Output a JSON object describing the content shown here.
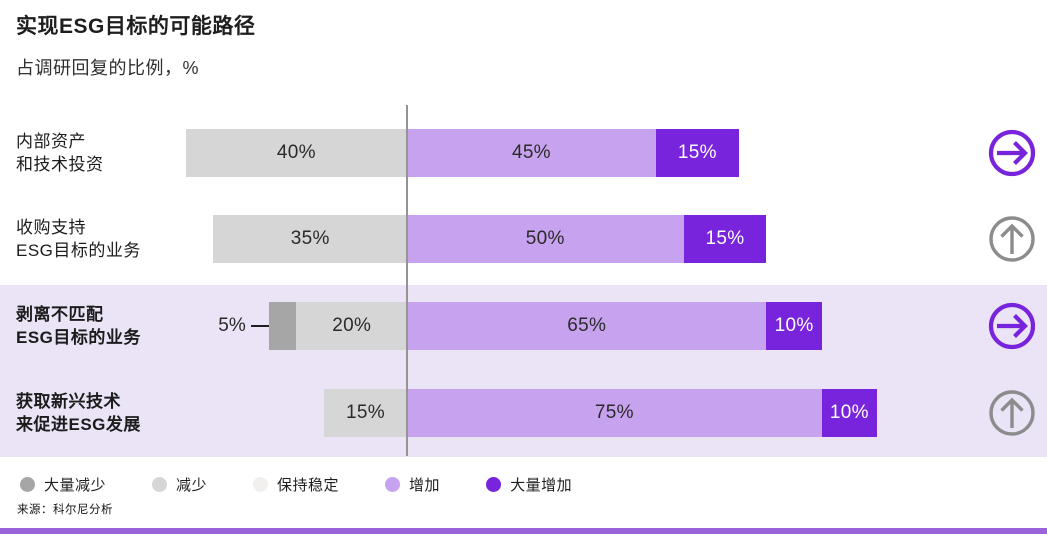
{
  "chart_data": {
    "type": "bar",
    "variant": "horizontal-diverging-stacked",
    "title": "实现ESG目标的可能路径",
    "subtitle": "占调研回复的比例，%",
    "unit": "%",
    "categories": [
      "大量减少",
      "减少",
      "保持稳定",
      "增加",
      "大量增加"
    ],
    "legend_position": "bottom",
    "legend": [
      {
        "label": "大量减少",
        "color": "#a6a6a6"
      },
      {
        "label": "减少",
        "color": "#d6d6d6"
      },
      {
        "label": "保持稳定",
        "color": "#f2f0ee"
      },
      {
        "label": "增加",
        "color": "#c7a2ee"
      },
      {
        "label": "大量增加",
        "color": "#7823dc"
      }
    ],
    "rows": [
      {
        "label_lines": [
          "内部资产",
          "和技术投资"
        ],
        "bold": false,
        "highlighted": false,
        "icon": "arrow-right-circle-icon",
        "icon_color": "#7823dc",
        "segments": [
          {
            "category": "减少",
            "value": 40
          },
          {
            "category": "增加",
            "value": 45
          },
          {
            "category": "大量增加",
            "value": 15
          }
        ]
      },
      {
        "label_lines": [
          "收购支持",
          "ESG目标的业务"
        ],
        "bold": false,
        "highlighted": false,
        "icon": "arrow-up-circle-icon",
        "icon_color": "#8c8c8c",
        "segments": [
          {
            "category": "减少",
            "value": 35
          },
          {
            "category": "增加",
            "value": 50
          },
          {
            "category": "大量增加",
            "value": 15
          }
        ]
      },
      {
        "label_lines": [
          "剥离不匹配",
          "ESG目标的业务"
        ],
        "bold": true,
        "highlighted": true,
        "icon": "arrow-right-circle-icon",
        "icon_color": "#7823dc",
        "segments": [
          {
            "category": "大量减少",
            "value": 5,
            "label_outside": true
          },
          {
            "category": "减少",
            "value": 20
          },
          {
            "category": "增加",
            "value": 65
          },
          {
            "category": "大量增加",
            "value": 10
          }
        ]
      },
      {
        "label_lines": [
          "获取新兴技术",
          "来促进ESG发展"
        ],
        "bold": true,
        "highlighted": true,
        "icon": "arrow-up-circle-icon",
        "icon_color": "#8c8c8c",
        "segments": [
          {
            "category": "减少",
            "value": 15
          },
          {
            "category": "增加",
            "value": 75
          },
          {
            "category": "大量增加",
            "value": 10
          }
        ]
      }
    ]
  },
  "source": "来源：科尔尼分析",
  "colors": {
    "background": "#ffffff",
    "highlight_band": "#ebe3f6",
    "axis_line": "#949494",
    "accent_bar": "#9a63d9",
    "text_dark": "#1f1f1f",
    "value_on_dark": "#ffffff"
  }
}
